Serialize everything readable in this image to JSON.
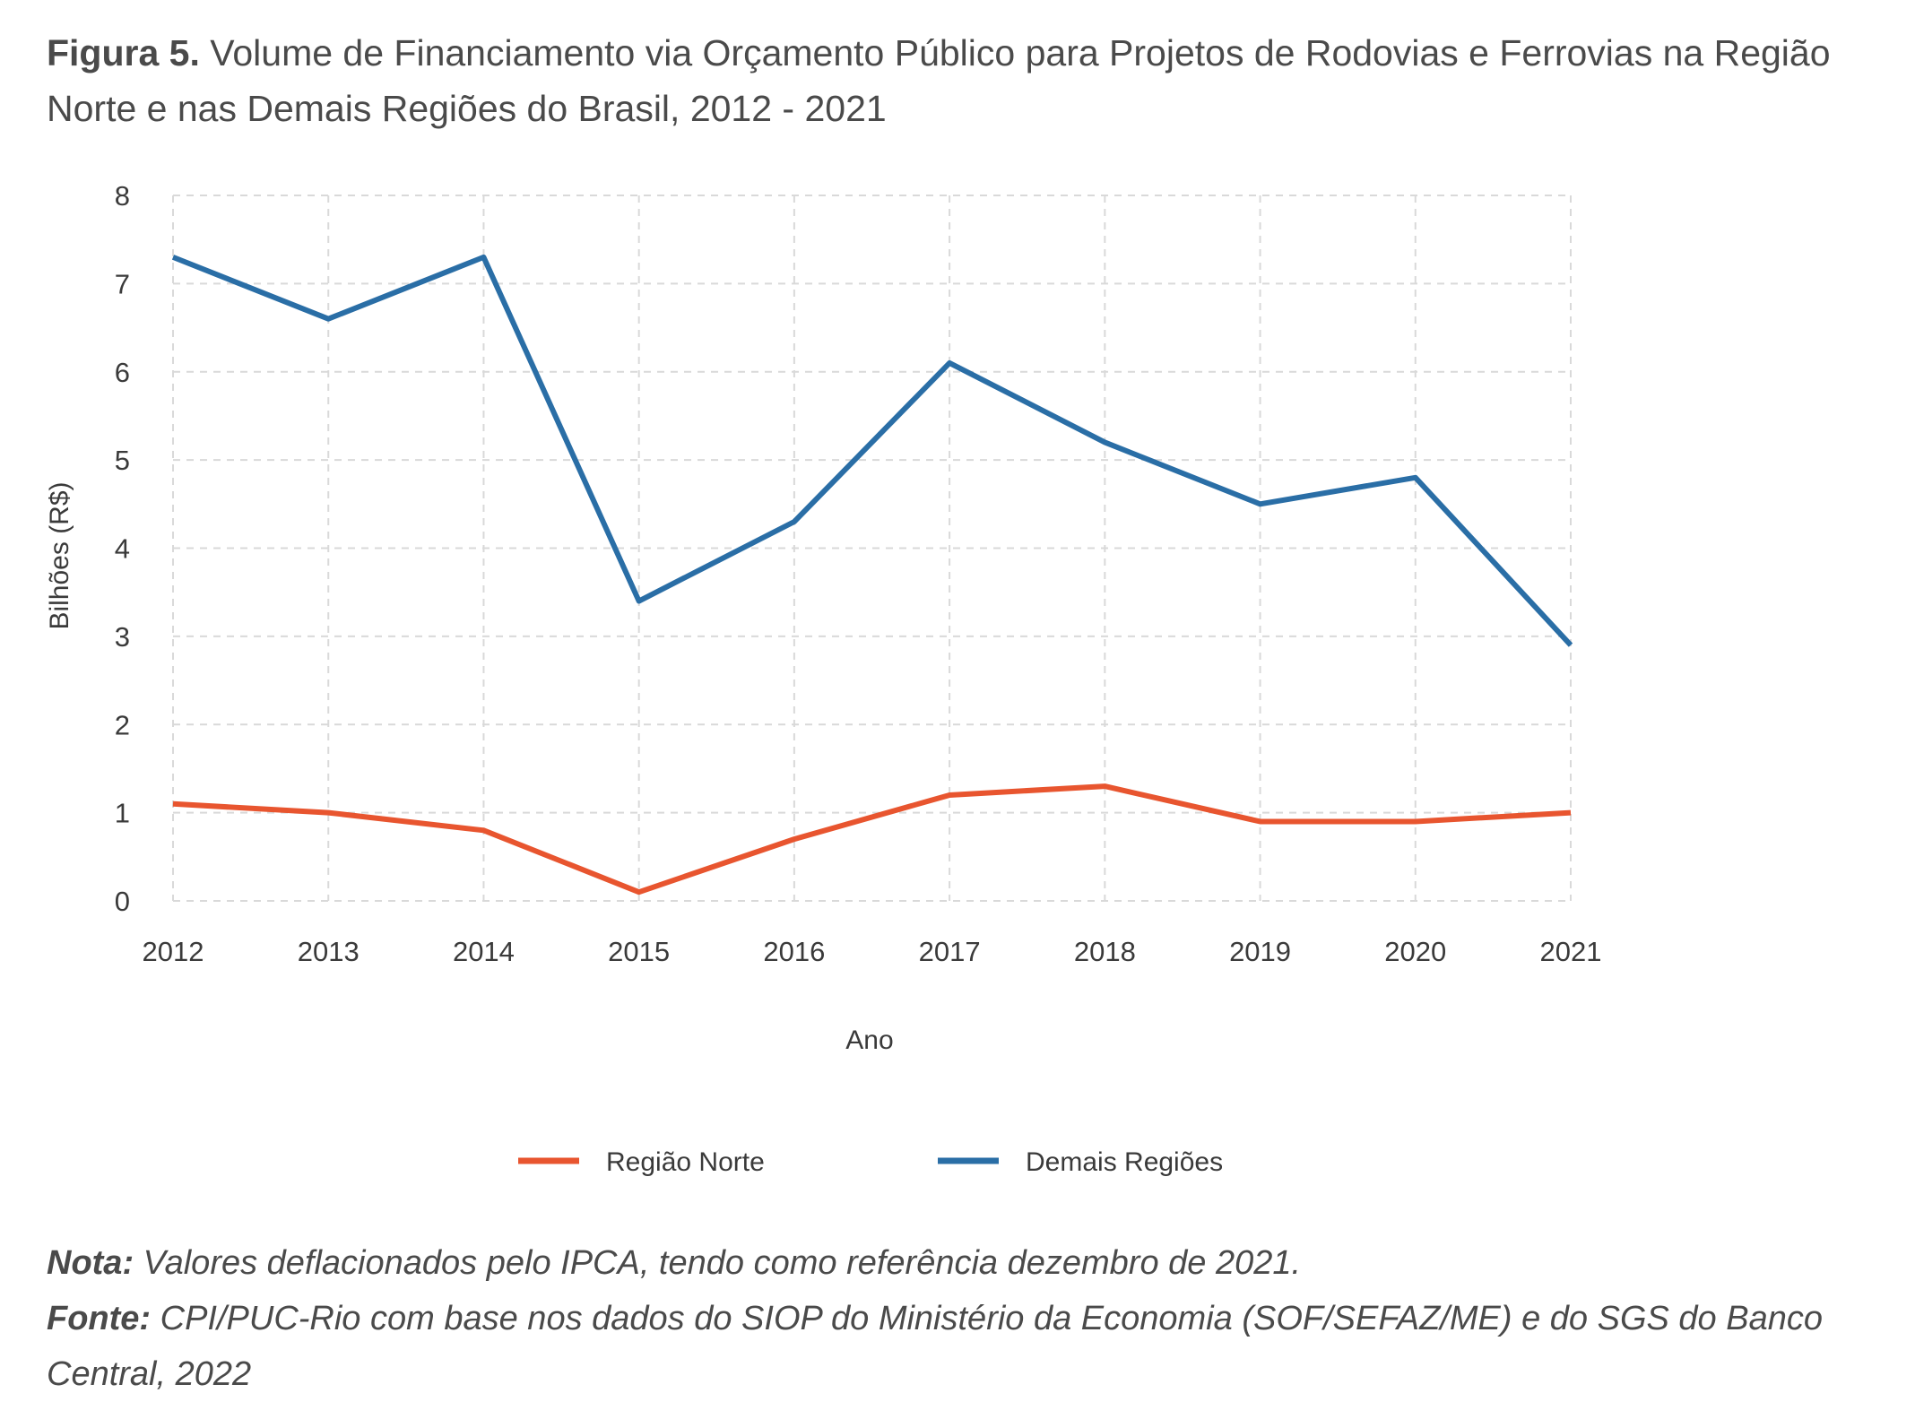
{
  "figure": {
    "label": "Figura 5.",
    "title": "Volume de Financiamento via Orçamento Público para Projetos de Rodovias e Ferrovias na Região Norte e nas Demais Regiões do Brasil, 2012 - 2021"
  },
  "chart_data": {
    "type": "line",
    "x": [
      2012,
      2013,
      2014,
      2015,
      2016,
      2017,
      2018,
      2019,
      2020,
      2021
    ],
    "x_tick_labels": [
      "2012",
      "2013",
      "2014",
      "2015",
      "2016",
      "2017",
      "2018",
      "2019",
      "2020",
      "2021"
    ],
    "y_ticks": [
      0,
      1,
      2,
      3,
      4,
      5,
      6,
      7,
      8
    ],
    "ylim": [
      0,
      8
    ],
    "xlabel": "Ano",
    "ylabel": "Bilhões (R$)",
    "grid": true,
    "legend_position": "bottom-center",
    "series": [
      {
        "name": "Região Norte",
        "color": "#e8552f",
        "values": [
          1.1,
          1.0,
          0.8,
          0.1,
          0.7,
          1.2,
          1.3,
          0.9,
          0.9,
          1.0
        ]
      },
      {
        "name": "Demais Regiões",
        "color": "#2a6ea6",
        "values": [
          7.3,
          6.6,
          7.3,
          3.4,
          4.3,
          6.1,
          5.2,
          4.5,
          4.8,
          2.9
        ]
      }
    ]
  },
  "notes": {
    "nota_label": "Nota:",
    "nota_text": " Valores deflacionados pelo IPCA, tendo como referência dezembro de 2021.",
    "fonte_label": "Fonte:",
    "fonte_text": " CPI/PUC-Rio com base nos dados do SIOP do Ministério da Economia (SOF/SEFAZ/ME) e do SGS do Banco Central, 2022"
  }
}
